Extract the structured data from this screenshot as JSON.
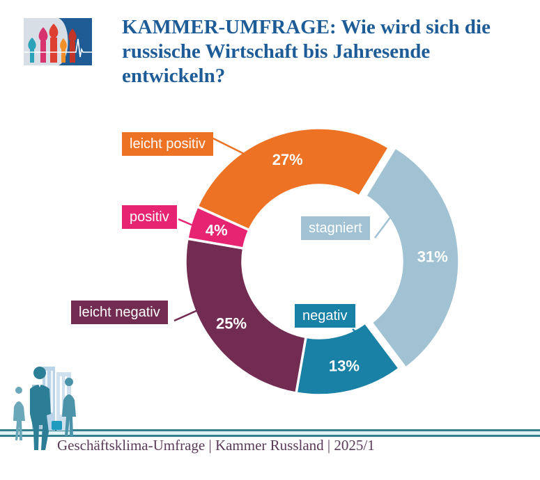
{
  "header": {
    "title": "KAMMER-UMFRAGE: Wie wird sich die russische Wirtschaft bis Jahresende entwickeln?"
  },
  "logo": {
    "name": "Kammer Russland Logo",
    "motif": "Kremlin onion domes with ECG heartbeat line"
  },
  "chart_data": {
    "type": "pie",
    "subtype": "donut",
    "title": "KAMMER-UMFRAGE: Wie wird sich die russische Wirtschaft bis Jahresende entwickeln?",
    "unit": "%",
    "start_angle_cw_from_top_deg": -65.7,
    "legend_position": "callout-labels",
    "segments": [
      {
        "label": "leicht positiv",
        "value": 27,
        "color": "#ed7224",
        "exploded": false
      },
      {
        "label": "stagniert",
        "value": 31,
        "color": "#a0c2d2",
        "exploded": true
      },
      {
        "label": "negativ",
        "value": 13,
        "color": "#1a81a6",
        "exploded": false
      },
      {
        "label": "leicht negativ",
        "value": 25,
        "color": "#722b51",
        "exploded": false
      },
      {
        "label": "positiv",
        "value": 4,
        "color": "#e62472",
        "exploded": false
      }
    ]
  },
  "footer": {
    "text": "Geschäftsklima-Umfrage | Kammer Russland | 2025/1"
  },
  "colors": {
    "title_blue": "#1e5c97",
    "footer_text": "#5a3a58",
    "divider_teal": "#34808f",
    "divider_pale": "#e1f2f6"
  }
}
